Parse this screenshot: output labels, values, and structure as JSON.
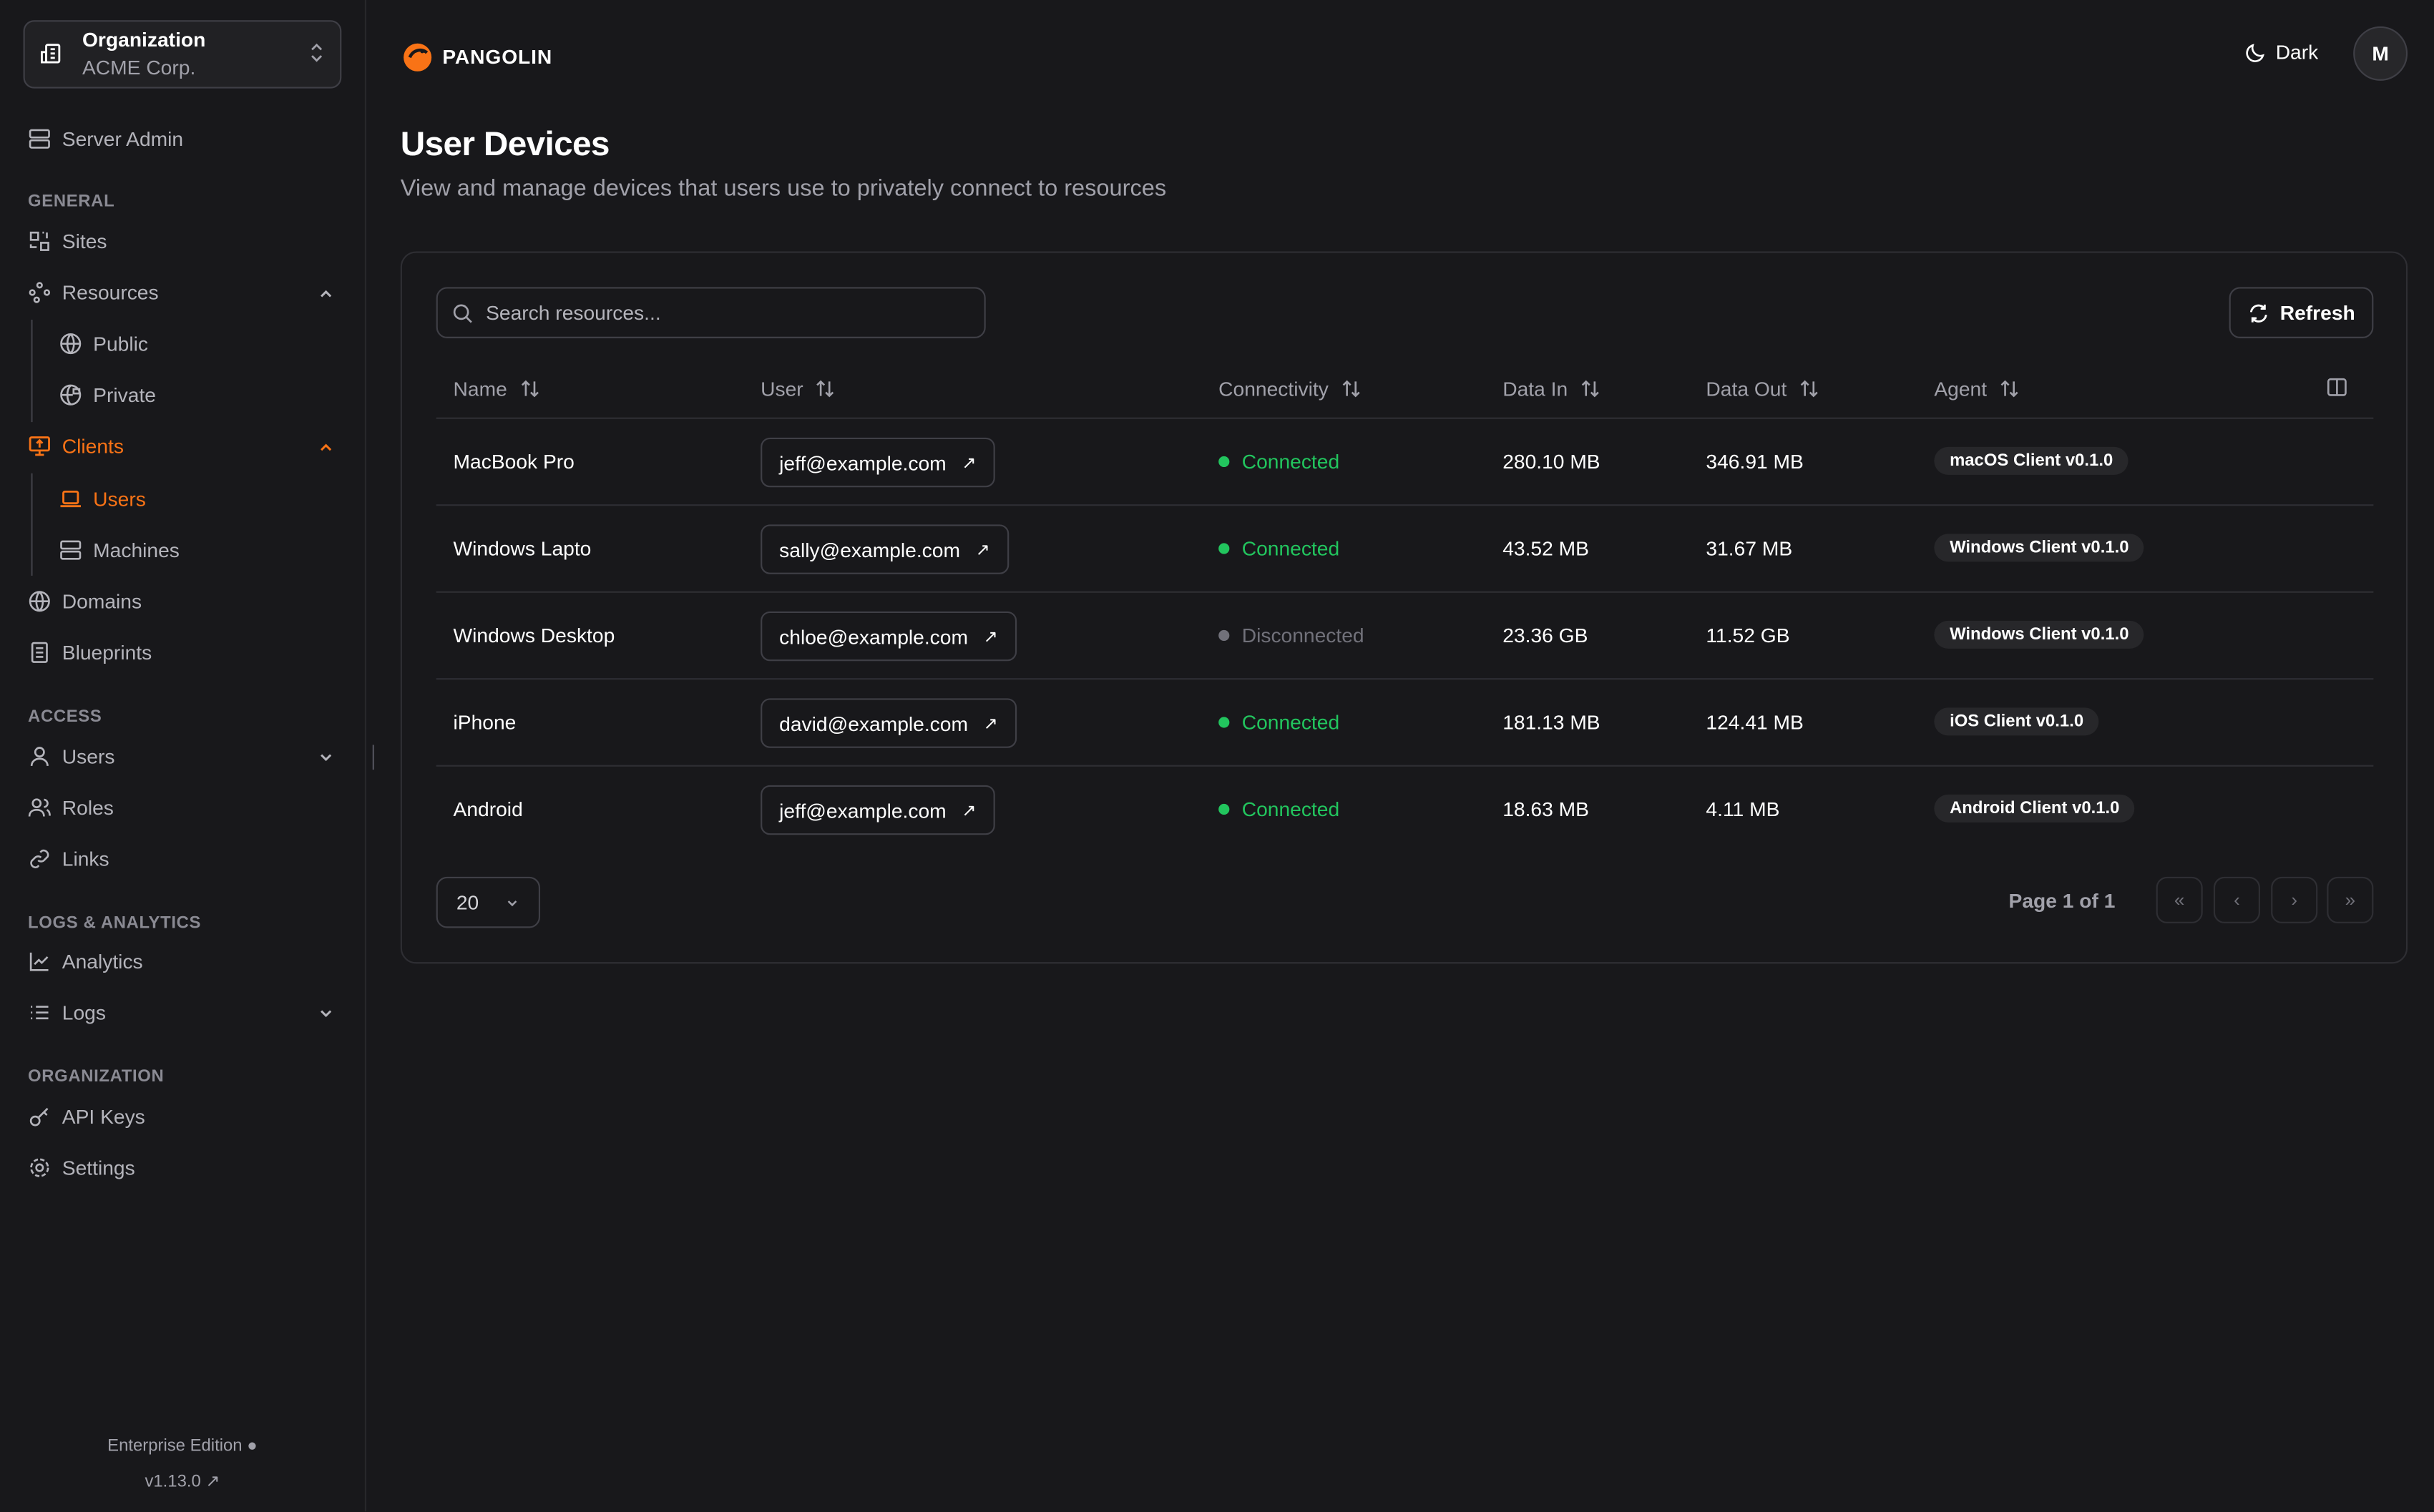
{
  "org": {
    "label": "Organization",
    "name": "ACME Corp."
  },
  "sidebar": {
    "server_admin": "Server Admin",
    "sections": {
      "general": "GENERAL",
      "access": "ACCESS",
      "logs": "LOGS & ANALYTICS",
      "organization": "ORGANIZATION"
    },
    "items": {
      "sites": "Sites",
      "resources": "Resources",
      "public": "Public",
      "private": "Private",
      "clients": "Clients",
      "users": "Users",
      "machines": "Machines",
      "domains": "Domains",
      "blueprints": "Blueprints",
      "access_users": "Users",
      "roles": "Roles",
      "links": "Links",
      "analytics": "Analytics",
      "logs": "Logs",
      "api_keys": "API Keys",
      "settings": "Settings"
    },
    "edition": "Enterprise Edition",
    "version": "v1.13.0"
  },
  "header": {
    "brand": "PANGOLIN",
    "theme": "Dark",
    "avatar": "M"
  },
  "page": {
    "title": "User Devices",
    "subtitle": "View and manage devices that users use to privately connect to resources"
  },
  "toolbar": {
    "search_placeholder": "Search resources...",
    "refresh": "Refresh"
  },
  "table": {
    "columns": [
      "Name",
      "User",
      "Connectivity",
      "Data In",
      "Data Out",
      "Agent"
    ],
    "rows": [
      {
        "name": "MacBook Pro",
        "user": "jeff@example.com",
        "status": "Connected",
        "in": "280.10 MB",
        "out": "346.91 MB",
        "agent": "macOS Client v0.1.0"
      },
      {
        "name": "Windows Lapto",
        "user": "sally@example.com",
        "status": "Connected",
        "in": "43.52 MB",
        "out": "31.67 MB",
        "agent": "Windows Client v0.1.0"
      },
      {
        "name": "Windows Desktop",
        "user": "chloe@example.com",
        "status": "Disconnected",
        "in": "23.36 GB",
        "out": "11.52 GB",
        "agent": "Windows Client v0.1.0"
      },
      {
        "name": "iPhone",
        "user": "david@example.com",
        "status": "Connected",
        "in": "181.13 MB",
        "out": "124.41 MB",
        "agent": "iOS Client v0.1.0"
      },
      {
        "name": "Android",
        "user": "jeff@example.com",
        "status": "Connected",
        "in": "18.63 MB",
        "out": "4.11 MB",
        "agent": "Android Client v0.1.0"
      }
    ]
  },
  "pagination": {
    "page_size": "20",
    "info": "Page 1 of 1"
  },
  "colors": {
    "accent": "#f97316",
    "connected": "#22c55e",
    "disconnected": "#71717a",
    "background": "#18181b"
  }
}
